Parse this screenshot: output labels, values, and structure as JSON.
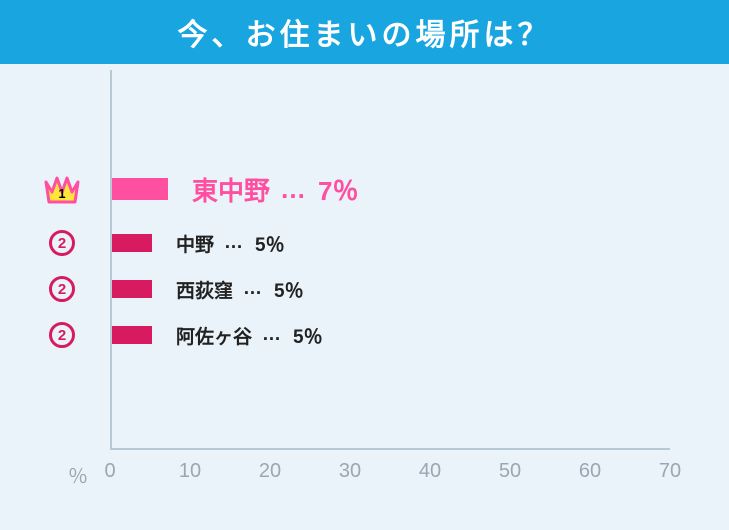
{
  "title": "今、お住まいの場所は？",
  "chart": {
    "type": "bar",
    "background_color": "#eaf3fa",
    "title_bg_color": "#19a6e0",
    "title_text_color": "#ffffff",
    "title_fontsize": 30,
    "axis_color": "#b8c9d6",
    "tick_color": "#9aa7b2",
    "tick_fontsize": 20,
    "xlim": [
      0,
      70
    ],
    "xtick_step": 10,
    "xticks": [
      0,
      10,
      20,
      30,
      40,
      50,
      60,
      70
    ],
    "pct_axis_label": "％",
    "top_color": "#ff4fa0",
    "other_color": "#d81b60",
    "text_color_top": "#ff4fa0",
    "text_color_other": "#222222",
    "label_top_fontsize": 26,
    "label_other_fontsize": 19,
    "bar_height_top": 22,
    "bar_height_other": 18,
    "dots": "…",
    "pct_suffix": "％",
    "crown_fill": "#ffe53b",
    "crown_stroke": "#ff4fa0",
    "rows": [
      {
        "rank": 1,
        "name": "東中野",
        "value": 7,
        "is_top": true
      },
      {
        "rank": 2,
        "name": "中野",
        "value": 5,
        "is_top": false
      },
      {
        "rank": 2,
        "name": "西荻窪",
        "value": 5,
        "is_top": false
      },
      {
        "rank": 2,
        "name": "阿佐ヶ谷",
        "value": 5,
        "is_top": false
      }
    ],
    "row_top_offsets": [
      96,
      150,
      196,
      242
    ]
  }
}
